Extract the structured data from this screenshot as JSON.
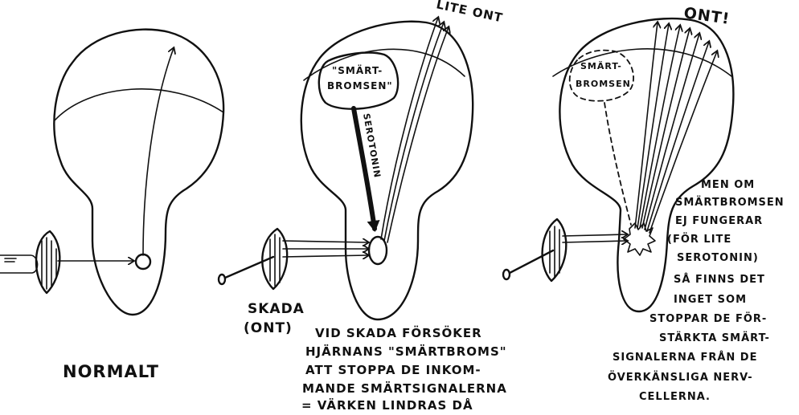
{
  "panels": {
    "normal": {
      "caption": "NORMALT"
    },
    "brake": {
      "pain_label": "LITE ONT",
      "brake_label_line1": "\"SMÄRT-",
      "brake_label_line2": "BROMSEN\"",
      "neurotransmitter": "SEROTONIN",
      "injury_line1": "SKADA",
      "injury_line2": "(ONT)",
      "explanation": [
        "VID SKADA FÖRSÖKER",
        "HJÄRNANS \"SMÄRTBROMS\"",
        "ATT STOPPA DE INKOM-",
        "MANDE SMÄRTSIGNALERNA",
        "= VÄRKEN LINDRAS DÅ"
      ]
    },
    "failed": {
      "pain_label": "ONT!",
      "brake_label_line1": "SMÄRT-",
      "brake_label_line2": "BROMSEN",
      "explanation": [
        "MEN OM",
        "SMÄRTBROMSEN",
        "EJ FUNGERAR",
        "(FÖR LITE",
        "SEROTONIN)",
        "SÅ FINNS DET",
        "INGET SOM",
        "STOPPAR DE FÖR-",
        "STÄRKTA SMÄRT-",
        "SIGNALERNA FRÅN DE",
        "ÖVERKÄNSLIGA NERV-",
        "CELLERNA."
      ]
    }
  },
  "colors": {
    "ink": "#111111",
    "paper": "#ffffff"
  }
}
